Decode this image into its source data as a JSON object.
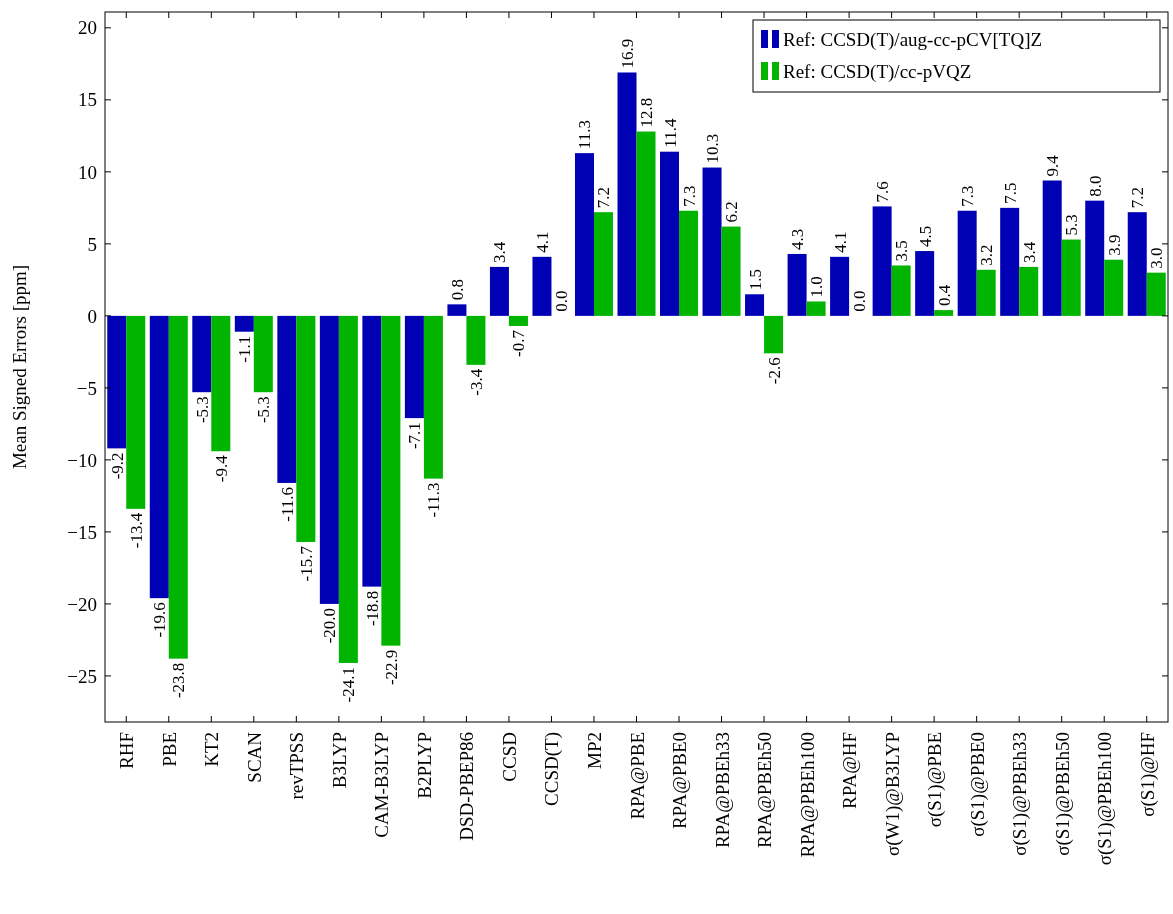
{
  "chart_data": {
    "type": "bar",
    "ylabel": "Mean Signed Errors [ppm]",
    "categories": [
      "RHF",
      "PBE",
      "KT2",
      "SCAN",
      "revTPSS",
      "B3LYP",
      "CAM-B3LYP",
      "B2PLYP",
      "DSD-PBEP86",
      "CCSD",
      "CCSD(T)",
      "MP2",
      "RPA@PBE",
      "RPA@PBE0",
      "RPA@PBEh33",
      "RPA@PBEh50",
      "RPA@PBEh100",
      "RPA@HF",
      "σ(W1)@B3LYP",
      "σ(S1)@PBE",
      "σ(S1)@PBE0",
      "σ(S1)@PBEh33",
      "σ(S1)@PBEh50",
      "σ(S1)@PBEh100",
      "σ(S1)@HF"
    ],
    "series": [
      {
        "name": "Ref: CCSD(T)/aug-cc-pCV[TQ]Z",
        "color": "#0000b4",
        "values": [
          -9.2,
          -19.6,
          -5.3,
          -1.1,
          -11.6,
          -20.0,
          -18.8,
          -7.1,
          0.8,
          3.4,
          4.1,
          11.3,
          16.9,
          11.4,
          10.3,
          1.5,
          4.3,
          4.1,
          7.6,
          4.5,
          7.3,
          7.5,
          9.4,
          8.0,
          7.2
        ],
        "value_labels": [
          "-9.2",
          "-19.6",
          "-5.3",
          "-1.1",
          "-11.6",
          "-20.0",
          "-18.8",
          "-7.1",
          "0.8",
          "3.4",
          "4.1",
          "11.3",
          "16.9",
          "11.4",
          "10.3",
          "1.5",
          "4.3",
          "4.1",
          "7.6",
          "4.5",
          "7.3",
          "7.5",
          "9.4",
          "8.0",
          "7.2"
        ]
      },
      {
        "name": "Ref: CCSD(T)/cc-pVQZ",
        "color": "#00b400",
        "values": [
          -13.4,
          -23.8,
          -9.4,
          -5.3,
          -15.7,
          -24.1,
          -22.9,
          -11.3,
          -3.4,
          -0.7,
          0.0,
          7.2,
          12.8,
          7.3,
          6.2,
          -2.6,
          1.0,
          0.0,
          3.5,
          0.4,
          3.2,
          3.4,
          5.3,
          3.9,
          3.0
        ],
        "value_labels": [
          "-13.4",
          "-23.8",
          "-9.4",
          "-5.3",
          "-15.7",
          "-24.1",
          "-22.9",
          "-11.3",
          "-3.4",
          "-0.7",
          "0.0",
          "7.2",
          "12.8",
          "7.3",
          "6.2",
          "-2.6",
          "1.0",
          "0.0",
          "3.5",
          "0.4",
          "3.2",
          "3.4",
          "5.3",
          "3.9",
          "3.0"
        ]
      }
    ],
    "ylim": [
      -28.2,
      21.1
    ],
    "yticks": [
      {
        "value": -25,
        "label": "−25"
      },
      {
        "value": -20,
        "label": "−20"
      },
      {
        "value": -15,
        "label": "−15"
      },
      {
        "value": -10,
        "label": "−10"
      },
      {
        "value": -5,
        "label": "−5"
      },
      0,
      5,
      10,
      15,
      20
    ],
    "grid": false,
    "legend": "top right"
  }
}
